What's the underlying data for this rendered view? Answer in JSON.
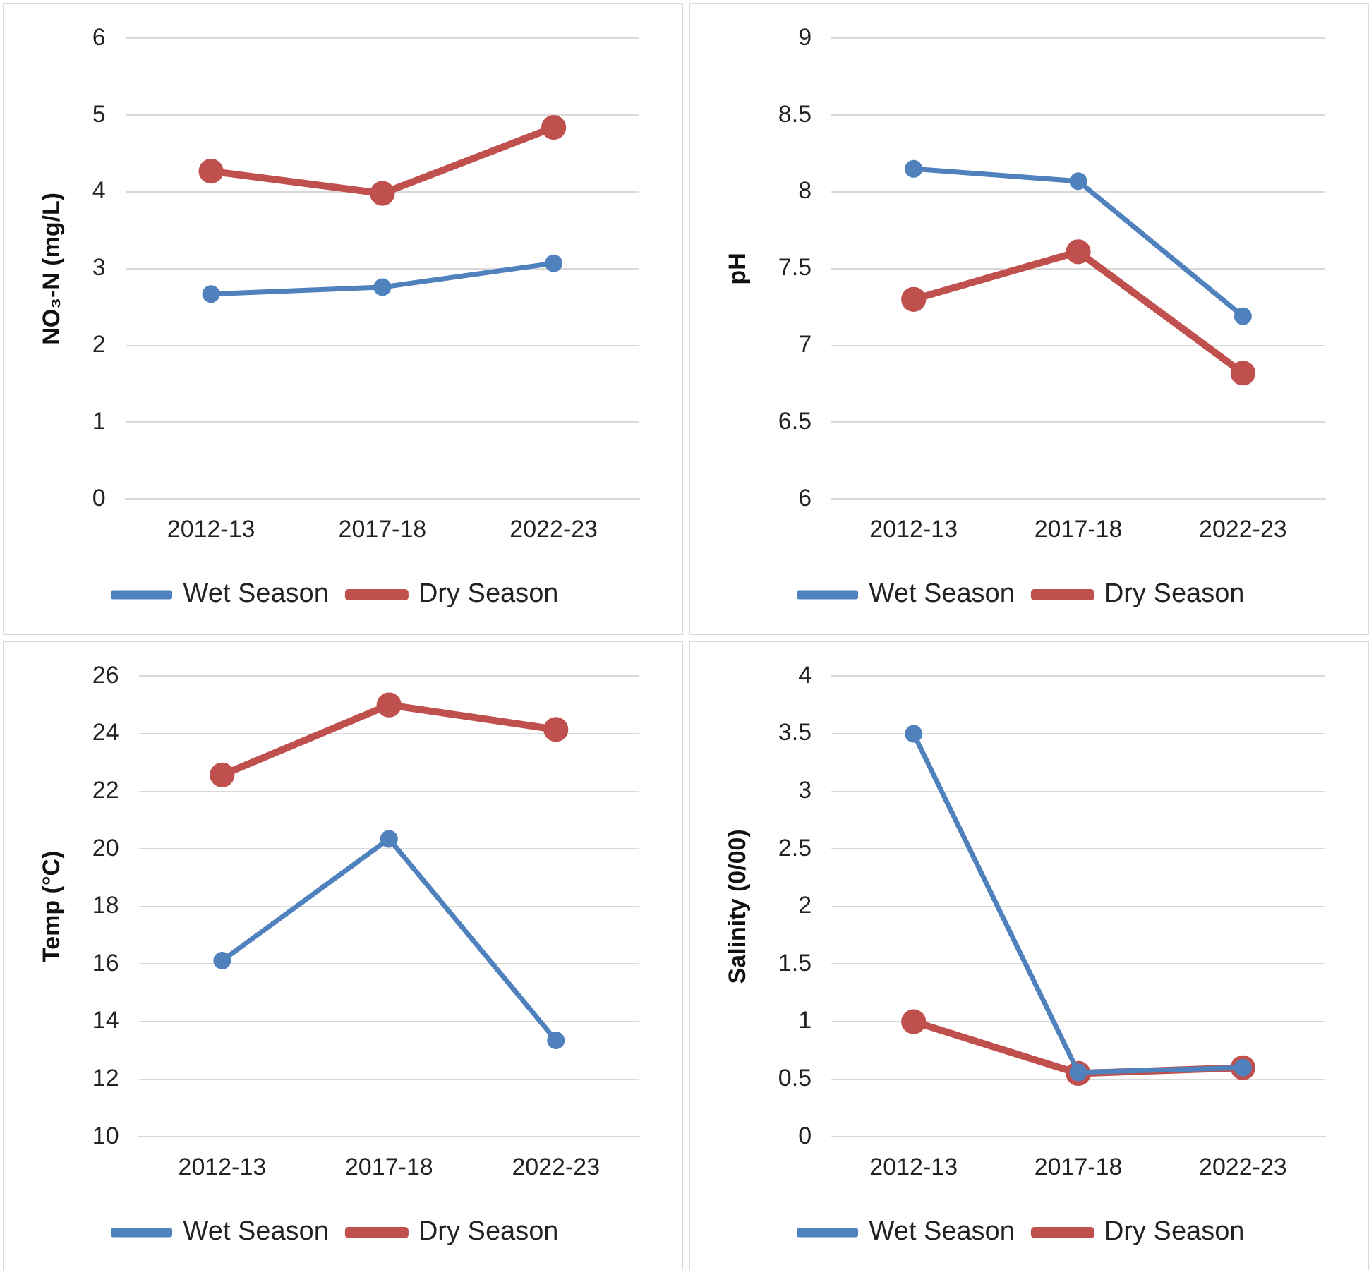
{
  "chart_data": [
    {
      "type": "line",
      "ylabel": "NO₃-N (mg/L)",
      "categories": [
        "2012-13",
        "2017-18",
        "2022-23"
      ],
      "ylim": [
        0,
        6
      ],
      "yticks": [
        0,
        1,
        2,
        3,
        4,
        5,
        6
      ],
      "grid": "y",
      "legend": "bottom",
      "marker": "circle",
      "series": [
        {
          "name": "Dry Season",
          "color": "#c0504d",
          "values": [
            4.27,
            3.98,
            4.84
          ]
        },
        {
          "name": "Wet Season",
          "color": "#4f81bd",
          "values": [
            2.67,
            2.76,
            3.07
          ]
        }
      ]
    },
    {
      "type": "line",
      "ylabel": "pH",
      "categories": [
        "2012-13",
        "2017-18",
        "2022-23"
      ],
      "ylim": [
        6,
        9
      ],
      "yticks": [
        6,
        6.5,
        7,
        7.5,
        8,
        8.5,
        9
      ],
      "grid": "y",
      "legend": "bottom",
      "marker": "circle",
      "series": [
        {
          "name": "Dry Season",
          "color": "#c0504d",
          "values": [
            7.3,
            7.61,
            6.82
          ]
        },
        {
          "name": "Wet Season",
          "color": "#4f81bd",
          "values": [
            8.15,
            8.07,
            7.19
          ]
        }
      ]
    },
    {
      "type": "line",
      "ylabel": "Temp (°C)",
      "categories": [
        "2012-13",
        "2017-18",
        "2022-23"
      ],
      "ylim": [
        10,
        26
      ],
      "yticks": [
        10,
        12,
        14,
        16,
        18,
        20,
        22,
        24,
        26
      ],
      "grid": "y",
      "legend": "bottom",
      "marker": "circle",
      "series": [
        {
          "name": "Dry Season",
          "color": "#c0504d",
          "values": [
            22.57,
            25,
            24.15
          ]
        },
        {
          "name": "Wet Season",
          "color": "#4f81bd",
          "values": [
            16.12,
            20.35,
            13.35
          ]
        }
      ]
    },
    {
      "type": "line",
      "ylabel": "Salinity (0/00)",
      "categories": [
        "2012-13",
        "2017-18",
        "2022-23"
      ],
      "ylim": [
        0,
        4
      ],
      "yticks": [
        0,
        0.5,
        1,
        1.5,
        2,
        2.5,
        3,
        3.5,
        4
      ],
      "grid": "y",
      "legend": "bottom",
      "marker": "circle",
      "series": [
        {
          "name": "Dry Season",
          "color": "#c0504d",
          "values": [
            1.0,
            0.55,
            0.6
          ]
        },
        {
          "name": "Wet Season",
          "color": "#4f81bd",
          "values": [
            3.5,
            0.56,
            0.6
          ]
        }
      ]
    }
  ]
}
